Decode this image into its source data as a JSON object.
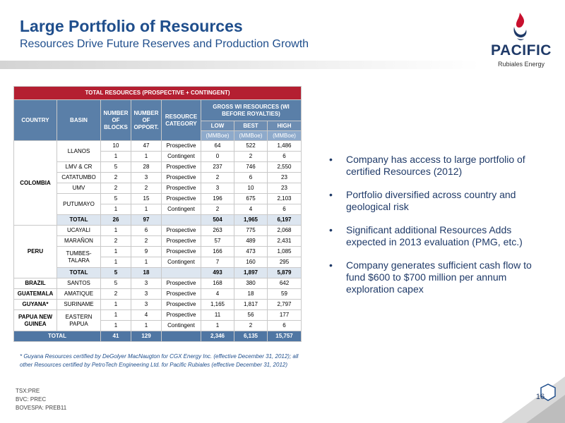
{
  "header": {
    "title": "Large Portfolio of Resources",
    "subtitle": "Resources Drive Future Reserves and Production Growth"
  },
  "logo": {
    "name": "PACIFIC",
    "sub": "Rubiales Energy",
    "icon": "flame-drop-icon"
  },
  "table": {
    "title": "TOTAL RESOURCES (PROSPECTIVE + CONTINGENT)",
    "headers": {
      "country": "COUNTRY",
      "basin": "BASIN",
      "blocks": "NUMBER OF BLOCKS",
      "opport": "NUMBER OF OPPORT.",
      "category": "RESOURCE CATEGORY",
      "gross": "GROSS WI RESOURCES (WI BEFORE ROYALTIES)",
      "low": "LOW",
      "best": "BEST",
      "high": "HIGH",
      "unit": "(MMBoe)"
    },
    "rows": [
      {
        "country": "COLOMBIA",
        "basin": "LLANOS",
        "blocks": "10",
        "opport": "47",
        "cat": "Prospective",
        "low": "64",
        "best": "522",
        "high": "1,486"
      },
      {
        "blocks": "1",
        "opport": "1",
        "cat": "Contingent",
        "low": "0",
        "best": "2",
        "high": "6"
      },
      {
        "basin": "LMV & CR",
        "blocks": "5",
        "opport": "28",
        "cat": "Prospective",
        "low": "237",
        "best": "746",
        "high": "2,550"
      },
      {
        "basin": "CATATUMBO",
        "blocks": "2",
        "opport": "3",
        "cat": "Prospective",
        "low": "2",
        "best": "6",
        "high": "23"
      },
      {
        "basin": "UMV",
        "blocks": "2",
        "opport": "2",
        "cat": "Prospective",
        "low": "3",
        "best": "10",
        "high": "23"
      },
      {
        "basin": "PUTUMAYO",
        "blocks": "5",
        "opport": "15",
        "cat": "Prospective",
        "low": "196",
        "best": "675",
        "high": "2,103"
      },
      {
        "blocks": "1",
        "opport": "1",
        "cat": "Contingent",
        "low": "2",
        "best": "4",
        "high": "6"
      },
      {
        "basin": "TOTAL",
        "blocks": "26",
        "opport": "97",
        "cat": "",
        "low": "504",
        "best": "1,965",
        "high": "6,197"
      },
      {
        "country": "PERU",
        "basin": "UCAYALI",
        "blocks": "1",
        "opport": "6",
        "cat": "Prospective",
        "low": "263",
        "best": "775",
        "high": "2,068"
      },
      {
        "basin": "MARAÑON",
        "blocks": "2",
        "opport": "2",
        "cat": "Prospective",
        "low": "57",
        "best": "489",
        "high": "2,431"
      },
      {
        "basin": "TUMBES-TALARA",
        "blocks": "1",
        "opport": "9",
        "cat": "Prospective",
        "low": "166",
        "best": "473",
        "high": "1,085"
      },
      {
        "blocks": "1",
        "opport": "1",
        "cat": "Contingent",
        "low": "7",
        "best": "160",
        "high": "295"
      },
      {
        "basin": "TOTAL",
        "blocks": "5",
        "opport": "18",
        "cat": "",
        "low": "493",
        "best": "1,897",
        "high": "5,879"
      },
      {
        "country": "BRAZIL",
        "basin": "SANTOS",
        "blocks": "5",
        "opport": "3",
        "cat": "Prospective",
        "low": "168",
        "best": "380",
        "high": "642"
      },
      {
        "country": "GUATEMALA",
        "basin": "AMATIQUE",
        "blocks": "2",
        "opport": "3",
        "cat": "Prospective",
        "low": "4",
        "best": "18",
        "high": "59"
      },
      {
        "country": "GUYANA*",
        "basin": "SURINAME",
        "blocks": "1",
        "opport": "3",
        "cat": "Prospective",
        "low": "1,165",
        "best": "1,817",
        "high": "2,797"
      },
      {
        "country": "PAPUA NEW GUINEA",
        "basin": "EASTERN PAPUA",
        "blocks": "1",
        "opport": "4",
        "cat": "Prospective",
        "low": "11",
        "best": "56",
        "high": "177"
      },
      {
        "blocks": "1",
        "opport": "1",
        "cat": "Contingent",
        "low": "1",
        "best": "2",
        "high": "6"
      },
      {
        "country": "TOTAL",
        "blocks": "41",
        "opport": "129",
        "cat": "",
        "low": "2,346",
        "best": "6,135",
        "high": "15,757"
      }
    ]
  },
  "footnote": "* Guyana Resources certified by DeGolyer MacNaugton for CGX Energy Inc. (effective December 31, 2012); all other Resources certified by PetroTech Engineering Ltd. for Pacific Rubiales (effective December 31, 2012)",
  "bullets": [
    "Company has access to large portfolio of certified Resources (2012)",
    "Portfolio diversified across country and geological risk",
    "Significant additional Resources Adds expected in 2013 evaluation (PMG, etc.)",
    "Company generates sufficient cash flow to fund $600 to $700 million per annum exploration capex"
  ],
  "bullet_char": "•",
  "tickers": [
    "TSX:PRE",
    "BVC: PREC",
    "BOVESPA: PREB11"
  ],
  "page_number": "16",
  "colors": {
    "title": "#1f4e8c",
    "table_title": "#b41f31",
    "table_header": "#5a7fa8",
    "subtotal": "#dde6f0",
    "grand_total": "#4f76a3"
  }
}
